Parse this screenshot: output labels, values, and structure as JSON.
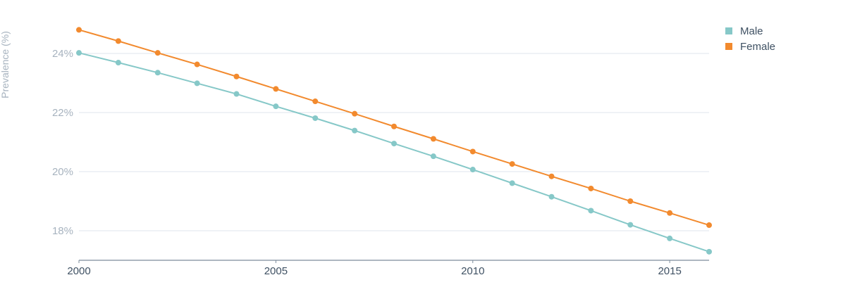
{
  "chart_data": {
    "type": "line",
    "title": "",
    "xlabel": "",
    "ylabel": "Prevalence (%)",
    "x": [
      2000,
      2001,
      2002,
      2003,
      2004,
      2005,
      2006,
      2007,
      2008,
      2009,
      2010,
      2011,
      2012,
      2013,
      2014,
      2015,
      2016
    ],
    "xticks": [
      {
        "value": 2000,
        "label": "2000"
      },
      {
        "value": 2005,
        "label": "2005"
      },
      {
        "value": 2010,
        "label": "2010"
      },
      {
        "value": 2015,
        "label": "2015"
      }
    ],
    "yticks": [
      {
        "value": 18,
        "label": "18%"
      },
      {
        "value": 20,
        "label": "20%"
      },
      {
        "value": 22,
        "label": "22%"
      },
      {
        "value": 24,
        "label": "24%"
      }
    ],
    "xlim": [
      2000,
      2016
    ],
    "ylim": [
      17,
      25
    ],
    "grid": true,
    "legend_position": "top-right",
    "series": [
      {
        "name": "Male",
        "color": "#86c8c8",
        "values": [
          24.02,
          23.69,
          23.35,
          22.99,
          22.63,
          22.21,
          21.81,
          21.39,
          20.95,
          20.52,
          20.07,
          19.61,
          19.15,
          18.68,
          18.2,
          17.74,
          17.29
        ]
      },
      {
        "name": "Female",
        "color": "#f28a2e",
        "values": [
          24.8,
          24.42,
          24.02,
          23.63,
          23.22,
          22.8,
          22.38,
          21.96,
          21.53,
          21.11,
          20.68,
          20.26,
          19.84,
          19.43,
          19.0,
          18.6,
          18.19
        ]
      }
    ]
  }
}
